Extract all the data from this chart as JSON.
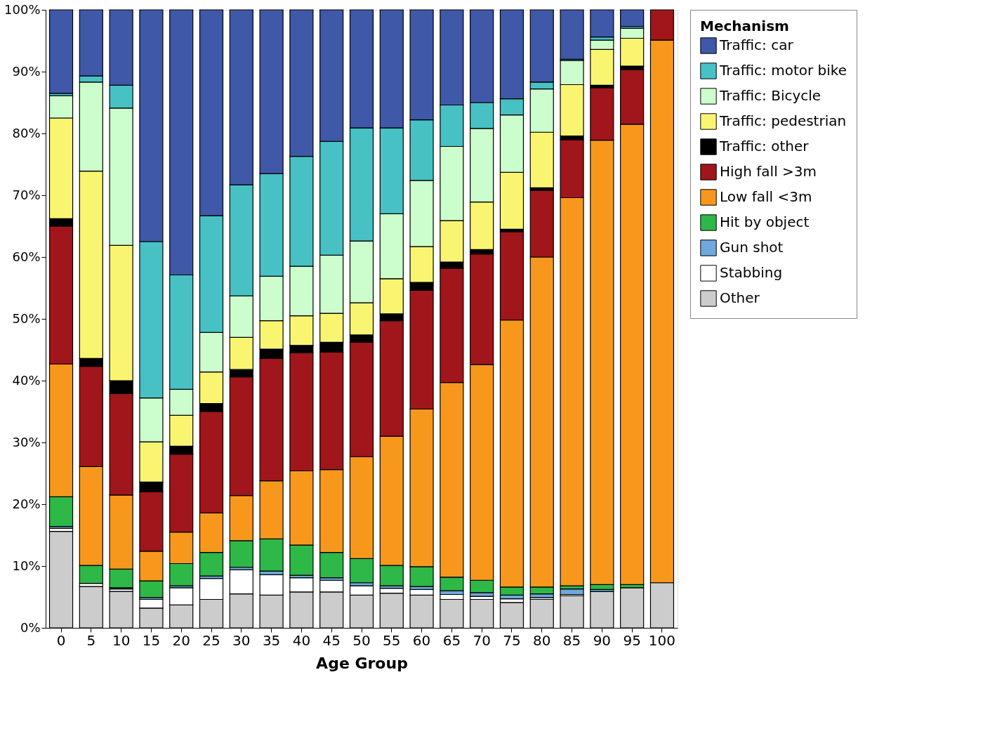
{
  "chart_data": {
    "type": "bar",
    "xlabel": "Age Group",
    "legend_title": "Mechanism",
    "stacked": true,
    "grid": false,
    "legend": "right",
    "categories": [
      "0",
      "5",
      "10",
      "15",
      "20",
      "25",
      "30",
      "35",
      "40",
      "45",
      "50",
      "55",
      "60",
      "65",
      "70",
      "75",
      "80",
      "85",
      "90",
      "95",
      "100"
    ],
    "ylim": [
      0,
      100
    ],
    "yticks": [
      {
        "value": 0,
        "label": "0%"
      },
      {
        "value": 10,
        "label": "10%"
      },
      {
        "value": 20,
        "label": "20%"
      },
      {
        "value": 30,
        "label": "30%"
      },
      {
        "value": 40,
        "label": "40%"
      },
      {
        "value": 50,
        "label": "50%"
      },
      {
        "value": 60,
        "label": "60%"
      },
      {
        "value": 70,
        "label": "70%"
      },
      {
        "value": 80,
        "label": "80%"
      },
      {
        "value": 90,
        "label": "90%"
      },
      {
        "value": 100,
        "label": "100%"
      }
    ],
    "series": [
      {
        "name": "Other",
        "color": "#cccccc",
        "values": [
          15.6,
          6.7,
          5.9,
          3.2,
          3.7,
          4.6,
          5.5,
          5.3,
          5.8,
          5.8,
          5.3,
          5.6,
          5.3,
          4.6,
          4.6,
          4.1,
          4.6,
          5.2,
          5.9,
          6.5,
          7.3
        ]
      },
      {
        "name": "Stabbing",
        "color": "#ffffff",
        "values": [
          0.5,
          0.5,
          0.4,
          1.4,
          2.8,
          3.4,
          3.9,
          3.3,
          2.3,
          1.9,
          1.5,
          0.8,
          0.9,
          0.8,
          0.5,
          0.6,
          0.3,
          0.2,
          null,
          null,
          null
        ]
      },
      {
        "name": "Gun shot",
        "color": "#6fa8dc",
        "values": [
          0.3,
          null,
          0.2,
          0.3,
          0.3,
          0.4,
          0.4,
          0.6,
          0.4,
          0.4,
          0.5,
          0.4,
          0.5,
          0.6,
          0.6,
          0.6,
          0.6,
          0.9,
          0.3,
          null,
          null
        ]
      },
      {
        "name": "Hit by object",
        "color": "#2eb847",
        "values": [
          4.8,
          2.9,
          3.0,
          2.7,
          3.6,
          3.8,
          4.3,
          5.2,
          4.9,
          4.1,
          3.9,
          3.3,
          3.2,
          2.2,
          2.0,
          1.3,
          1.1,
          0.5,
          0.8,
          0.5,
          null
        ]
      },
      {
        "name": "Low fall <3m",
        "color": "#f7981d",
        "values": [
          21.5,
          16.0,
          12.0,
          4.8,
          5.1,
          6.4,
          7.3,
          9.4,
          12.0,
          13.4,
          16.5,
          20.9,
          25.5,
          31.5,
          34.9,
          43.2,
          53.4,
          62.8,
          71.9,
          74.5,
          87.8
        ]
      },
      {
        "name": "High fall >3m",
        "color": "#a0161a",
        "values": [
          22.3,
          16.2,
          16.4,
          9.6,
          12.6,
          16.4,
          19.2,
          19.8,
          19.1,
          19.0,
          18.5,
          18.7,
          19.2,
          18.5,
          17.9,
          14.3,
          10.8,
          9.4,
          8.5,
          8.8,
          4.9
        ]
      },
      {
        "name": "Traffic: other",
        "color": "#000000",
        "values": [
          1.2,
          1.3,
          2.1,
          1.6,
          1.3,
          1.3,
          1.2,
          1.5,
          1.2,
          1.6,
          1.2,
          1.1,
          1.3,
          1.0,
          0.7,
          0.4,
          0.4,
          0.6,
          0.4,
          0.6,
          null
        ]
      },
      {
        "name": "Traffic: pedestrian",
        "color": "#faf570",
        "values": [
          16.3,
          30.3,
          21.9,
          6.5,
          5.0,
          5.1,
          5.2,
          4.6,
          4.8,
          4.7,
          5.2,
          5.7,
          5.8,
          6.7,
          7.7,
          9.2,
          9.0,
          8.3,
          5.8,
          4.5,
          null
        ]
      },
      {
        "name": "Traffic: Bicycle",
        "color": "#ccfdcc",
        "values": [
          3.6,
          14.4,
          22.2,
          7.1,
          4.2,
          6.4,
          6.7,
          7.2,
          8.0,
          9.4,
          10.0,
          10.5,
          10.7,
          12.0,
          11.9,
          9.3,
          7.0,
          3.9,
          1.5,
          1.6,
          null
        ]
      },
      {
        "name": "Traffic: motor bike",
        "color": "#47c1c4",
        "values": [
          0.4,
          1.0,
          3.7,
          25.3,
          18.5,
          18.9,
          18.0,
          16.6,
          17.8,
          18.4,
          18.3,
          13.9,
          9.8,
          6.7,
          4.2,
          2.6,
          1.1,
          0.2,
          0.5,
          0.3,
          null
        ]
      },
      {
        "name": "Traffic: car",
        "color": "#3f58a8",
        "values": [
          13.5,
          10.7,
          12.2,
          37.5,
          42.9,
          33.3,
          28.3,
          26.5,
          23.7,
          21.3,
          19.1,
          19.1,
          17.8,
          15.4,
          15.0,
          14.4,
          11.7,
          8.0,
          4.4,
          2.7,
          null
        ]
      }
    ]
  }
}
